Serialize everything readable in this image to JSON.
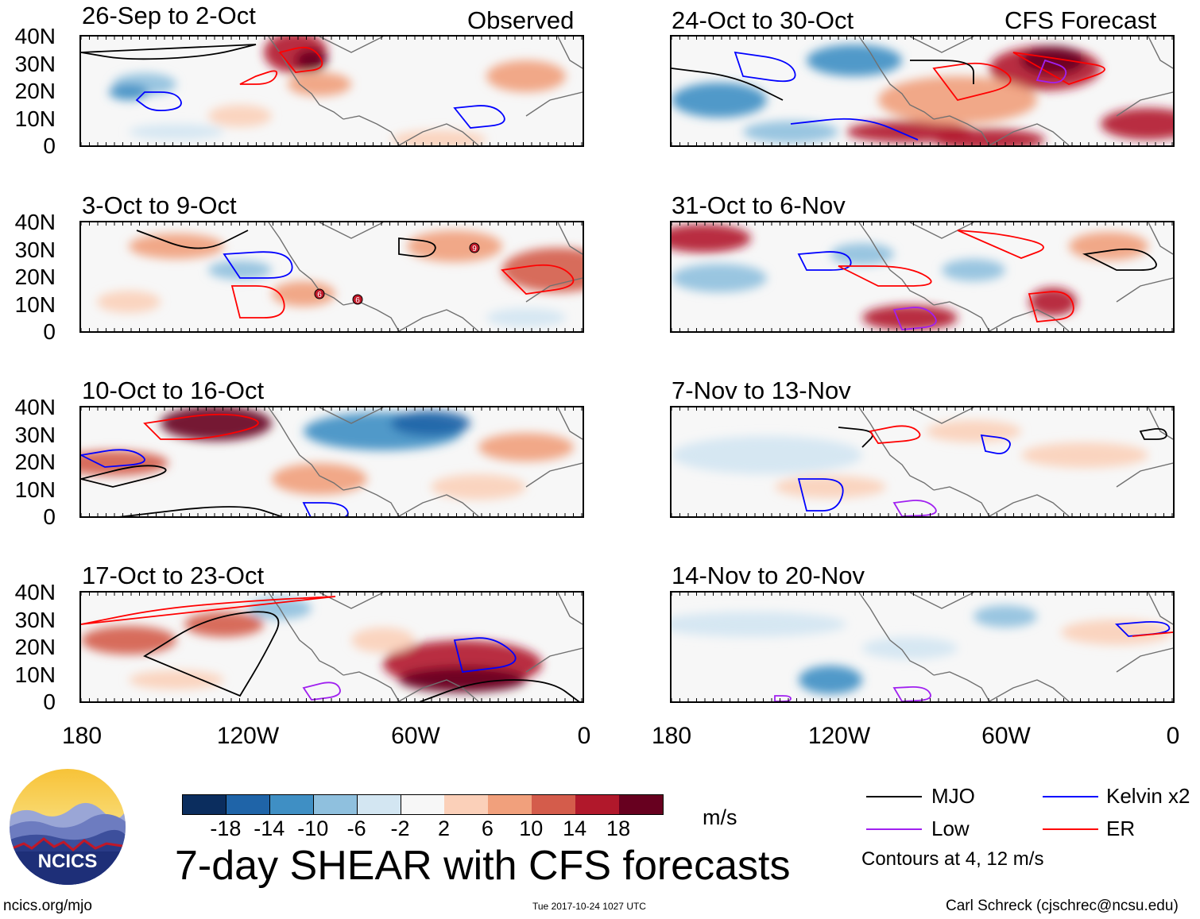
{
  "figure_title": "7-day SHEAR with CFS forecasts",
  "units": "m/s",
  "site": "ncics.org/mjo",
  "timestamp": "Tue 2017-10-24 1027 UTC",
  "author": "Carl Schreck (cjschrec@ncsu.edu)",
  "logo_text": "NCICS",
  "column_headers": {
    "observed": "Observed",
    "forecast": "CFS Forecast"
  },
  "colors": {
    "mjo": "#000000",
    "low": "#a020f0",
    "kelvin": "#0000ff",
    "er": "#ff0000",
    "land_outline": "#707070"
  },
  "chart_data": [
    {
      "type": "heatmap",
      "title": "26-Sep to 2-Oct",
      "source": "Observed",
      "lat_ticks": [
        "40N",
        "30N",
        "20N",
        "10N",
        "0"
      ],
      "lon_ticks": [
        "180",
        "120W",
        "60W",
        "0"
      ]
    },
    {
      "type": "heatmap",
      "title": "3-Oct to 9-Oct",
      "source": "Observed",
      "lat_ticks": [
        "40N",
        "30N",
        "20N",
        "10N",
        "0"
      ],
      "lon_ticks": [
        "180",
        "120W",
        "60W",
        "0"
      ]
    },
    {
      "type": "heatmap",
      "title": "10-Oct to 16-Oct",
      "source": "Observed",
      "lat_ticks": [
        "40N",
        "30N",
        "20N",
        "10N",
        "0"
      ],
      "lon_ticks": [
        "180",
        "120W",
        "60W",
        "0"
      ]
    },
    {
      "type": "heatmap",
      "title": "17-Oct to 23-Oct",
      "source": "Observed",
      "lat_ticks": [
        "40N",
        "30N",
        "20N",
        "10N",
        "0"
      ],
      "lon_ticks": [
        "180",
        "120W",
        "60W",
        "0"
      ]
    },
    {
      "type": "heatmap",
      "title": "24-Oct to 30-Oct",
      "source": "CFS Forecast",
      "lat_ticks": [
        "40N",
        "30N",
        "20N",
        "10N",
        "0"
      ],
      "lon_ticks": [
        "180",
        "120W",
        "60W",
        "0"
      ]
    },
    {
      "type": "heatmap",
      "title": "31-Oct to 6-Nov",
      "source": "CFS Forecast",
      "lat_ticks": [
        "40N",
        "30N",
        "20N",
        "10N",
        "0"
      ],
      "lon_ticks": [
        "180",
        "120W",
        "60W",
        "0"
      ]
    },
    {
      "type": "heatmap",
      "title": "7-Nov to 13-Nov",
      "source": "CFS Forecast",
      "lat_ticks": [
        "40N",
        "30N",
        "20N",
        "10N",
        "0"
      ],
      "lon_ticks": [
        "180",
        "120W",
        "60W",
        "0"
      ]
    },
    {
      "type": "heatmap",
      "title": "14-Nov to 20-Nov",
      "source": "CFS Forecast",
      "lat_ticks": [
        "40N",
        "30N",
        "20N",
        "10N",
        "0"
      ],
      "lon_ticks": [
        "180",
        "120W",
        "60W",
        "0"
      ]
    }
  ],
  "colorbar": {
    "ticks": [
      "-18",
      "-14",
      "-10",
      "-6",
      "-2",
      "2",
      "6",
      "10",
      "14",
      "18"
    ],
    "colors": [
      "#0b2d5e",
      "#1f64a8",
      "#3f8fc4",
      "#8fc0de",
      "#d3e6f2",
      "#f7f7f7",
      "#fbd0b9",
      "#f1a07c",
      "#d45c4b",
      "#b1182b",
      "#67001f"
    ]
  },
  "legend": {
    "items": [
      {
        "label": "MJO",
        "color": "#000000"
      },
      {
        "label": "Kelvin x2",
        "color": "#0000ff"
      },
      {
        "label": "Low",
        "color": "#a020f0"
      },
      {
        "label": "ER",
        "color": "#ff0000"
      }
    ],
    "note": "Contours at 4, 12 m/s"
  },
  "storm_markers": [
    {
      "symbol": "9",
      "panel": "3-Oct to 9-Oct"
    },
    {
      "symbol": "6",
      "panel": "3-Oct to 9-Oct"
    }
  ]
}
